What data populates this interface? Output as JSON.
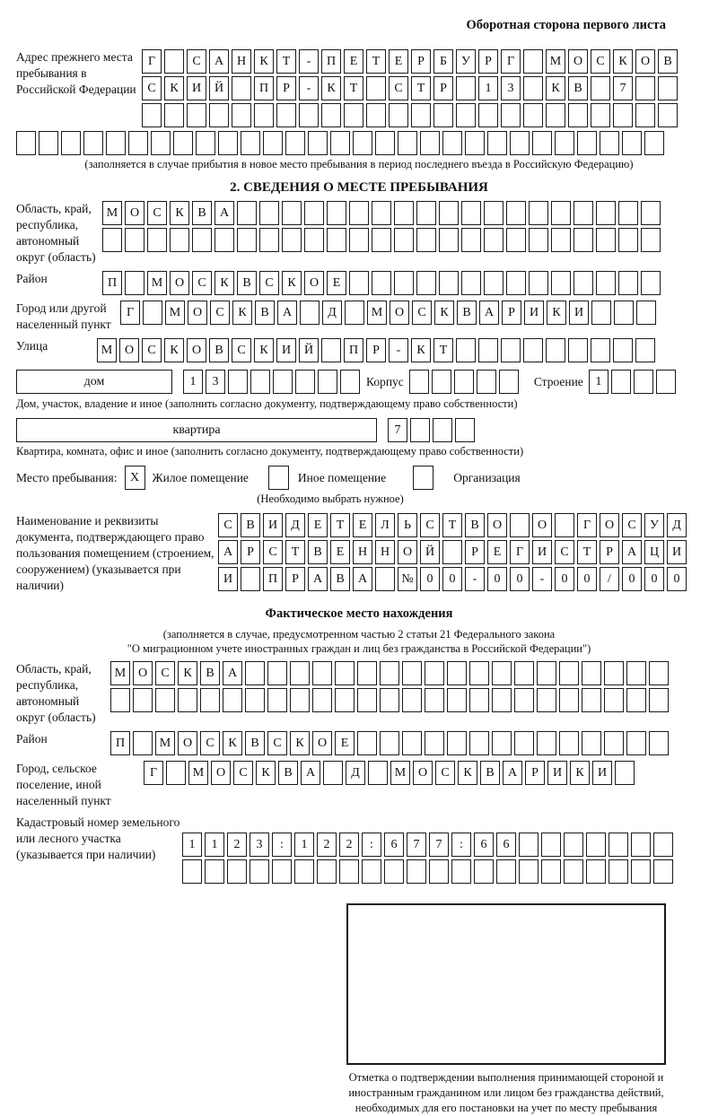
{
  "page_header": {
    "title": "Оборотная сторона первого листа"
  },
  "prev_address": {
    "label": "Адрес прежнего места пребывания в Российской Федерации",
    "row1": {
      "value": "Г САНКТ-ПЕТЕРБУРГ МОСКОВ",
      "count": 24
    },
    "row2": {
      "value": "СКИЙ ПР-КТ СТР 13 КВ 7",
      "count": 24
    },
    "row3": {
      "value": "",
      "count": 24
    },
    "row4": {
      "value": "",
      "count": 29
    },
    "note": "(заполняется в случае прибытия в новое место пребывания в период последнего въезда в Российскую Федерацию)"
  },
  "section2": {
    "title": "2. СВЕДЕНИЯ О МЕСТЕ ПРЕБЫВАНИЯ",
    "region": {
      "label": "Область, край, республика, автономный округ (область)",
      "row1": {
        "value": "МОСКВА",
        "count": 25
      },
      "row2": {
        "value": "",
        "count": 25
      }
    },
    "district": {
      "label": "Район",
      "row": {
        "value": "П МОСКВСКОЕ",
        "count": 25
      }
    },
    "city": {
      "label": "Город или другой населенный пункт",
      "row": {
        "value": "Г МОСКВА Д МОСКВАРИКИ",
        "count": 24
      }
    },
    "street": {
      "label": "Улица",
      "row": {
        "value": "МОСКОВСКИЙ ПР-КТ",
        "count": 25
      }
    },
    "house": {
      "label": "дом",
      "row": {
        "value": "13",
        "count": 8
      },
      "korpus_label": "Корпус",
      "korpus_row": {
        "value": "",
        "count": 5
      },
      "stroenie_label": "Строение",
      "stroenie_row": {
        "value": "1",
        "count": 4
      },
      "note": "Дом, участок, владение и иное (заполнить согласно документу, подтверждающему право собственности)"
    },
    "apartment": {
      "label": "квартира",
      "row": {
        "value": "7",
        "count": 4
      },
      "note": "Квартира, комната, офис и иное (заполнить согласно документу, подтверждающему право собственности)"
    },
    "stay": {
      "label": "Место пребывания:",
      "opt1": {
        "mark": "X",
        "label": "Жилое помещение"
      },
      "opt2": {
        "mark": "",
        "label": "Иное помещение"
      },
      "opt3": {
        "mark": "",
        "label": "Организация"
      },
      "note": "(Необходимо выбрать нужное)"
    },
    "document": {
      "label": "Наименование и реквизиты документа, подтверждающего право пользования помещением (строением, сооружением) (указывается при наличии)",
      "row1": {
        "value": "СВИДЕТЕЛЬСТВО О ГОСУД",
        "count": 21
      },
      "row2": {
        "value": "АРСТВЕННОЙ РЕГИСТРАЦИ",
        "count": 21
      },
      "row3": {
        "value": "И ПРАВА №00-00-00/000",
        "count": 21
      }
    }
  },
  "actual": {
    "title": "Фактическое место нахождения",
    "note1": "(заполняется в случае, предусмотренном частью 2 статьи 21 Федерального закона",
    "note2": "\"О миграционном учете иностранных граждан и лиц без гражданства в Российской Федерации\")",
    "region": {
      "label": "Область, край, республика, автономный округ (область)",
      "row1": {
        "value": "МОСКВА",
        "count": 25
      },
      "row2": {
        "value": "",
        "count": 25
      }
    },
    "district": {
      "label": "Район",
      "row": {
        "value": "П МОСКВСКОЕ",
        "count": 25
      }
    },
    "city": {
      "label": "Город, сельское поселение, иной населенный пункт",
      "row": {
        "value": "Г МОСКВА Д МОСКВАРИКИ",
        "count": 22
      }
    },
    "cadastral": {
      "label": "Кадастровый номер земельного или лесного участка (указывается при наличии)",
      "row1": {
        "value": "1123:122:677:66",
        "count": 22
      },
      "row2": {
        "value": "",
        "count": 22
      }
    }
  },
  "stamp": {
    "caption": "Отметка о подтверждении выполнения принимающей стороной и иностранным гражданином или лицом без гражданства действий, необходимых для его постановки на учет по месту пребывания"
  }
}
